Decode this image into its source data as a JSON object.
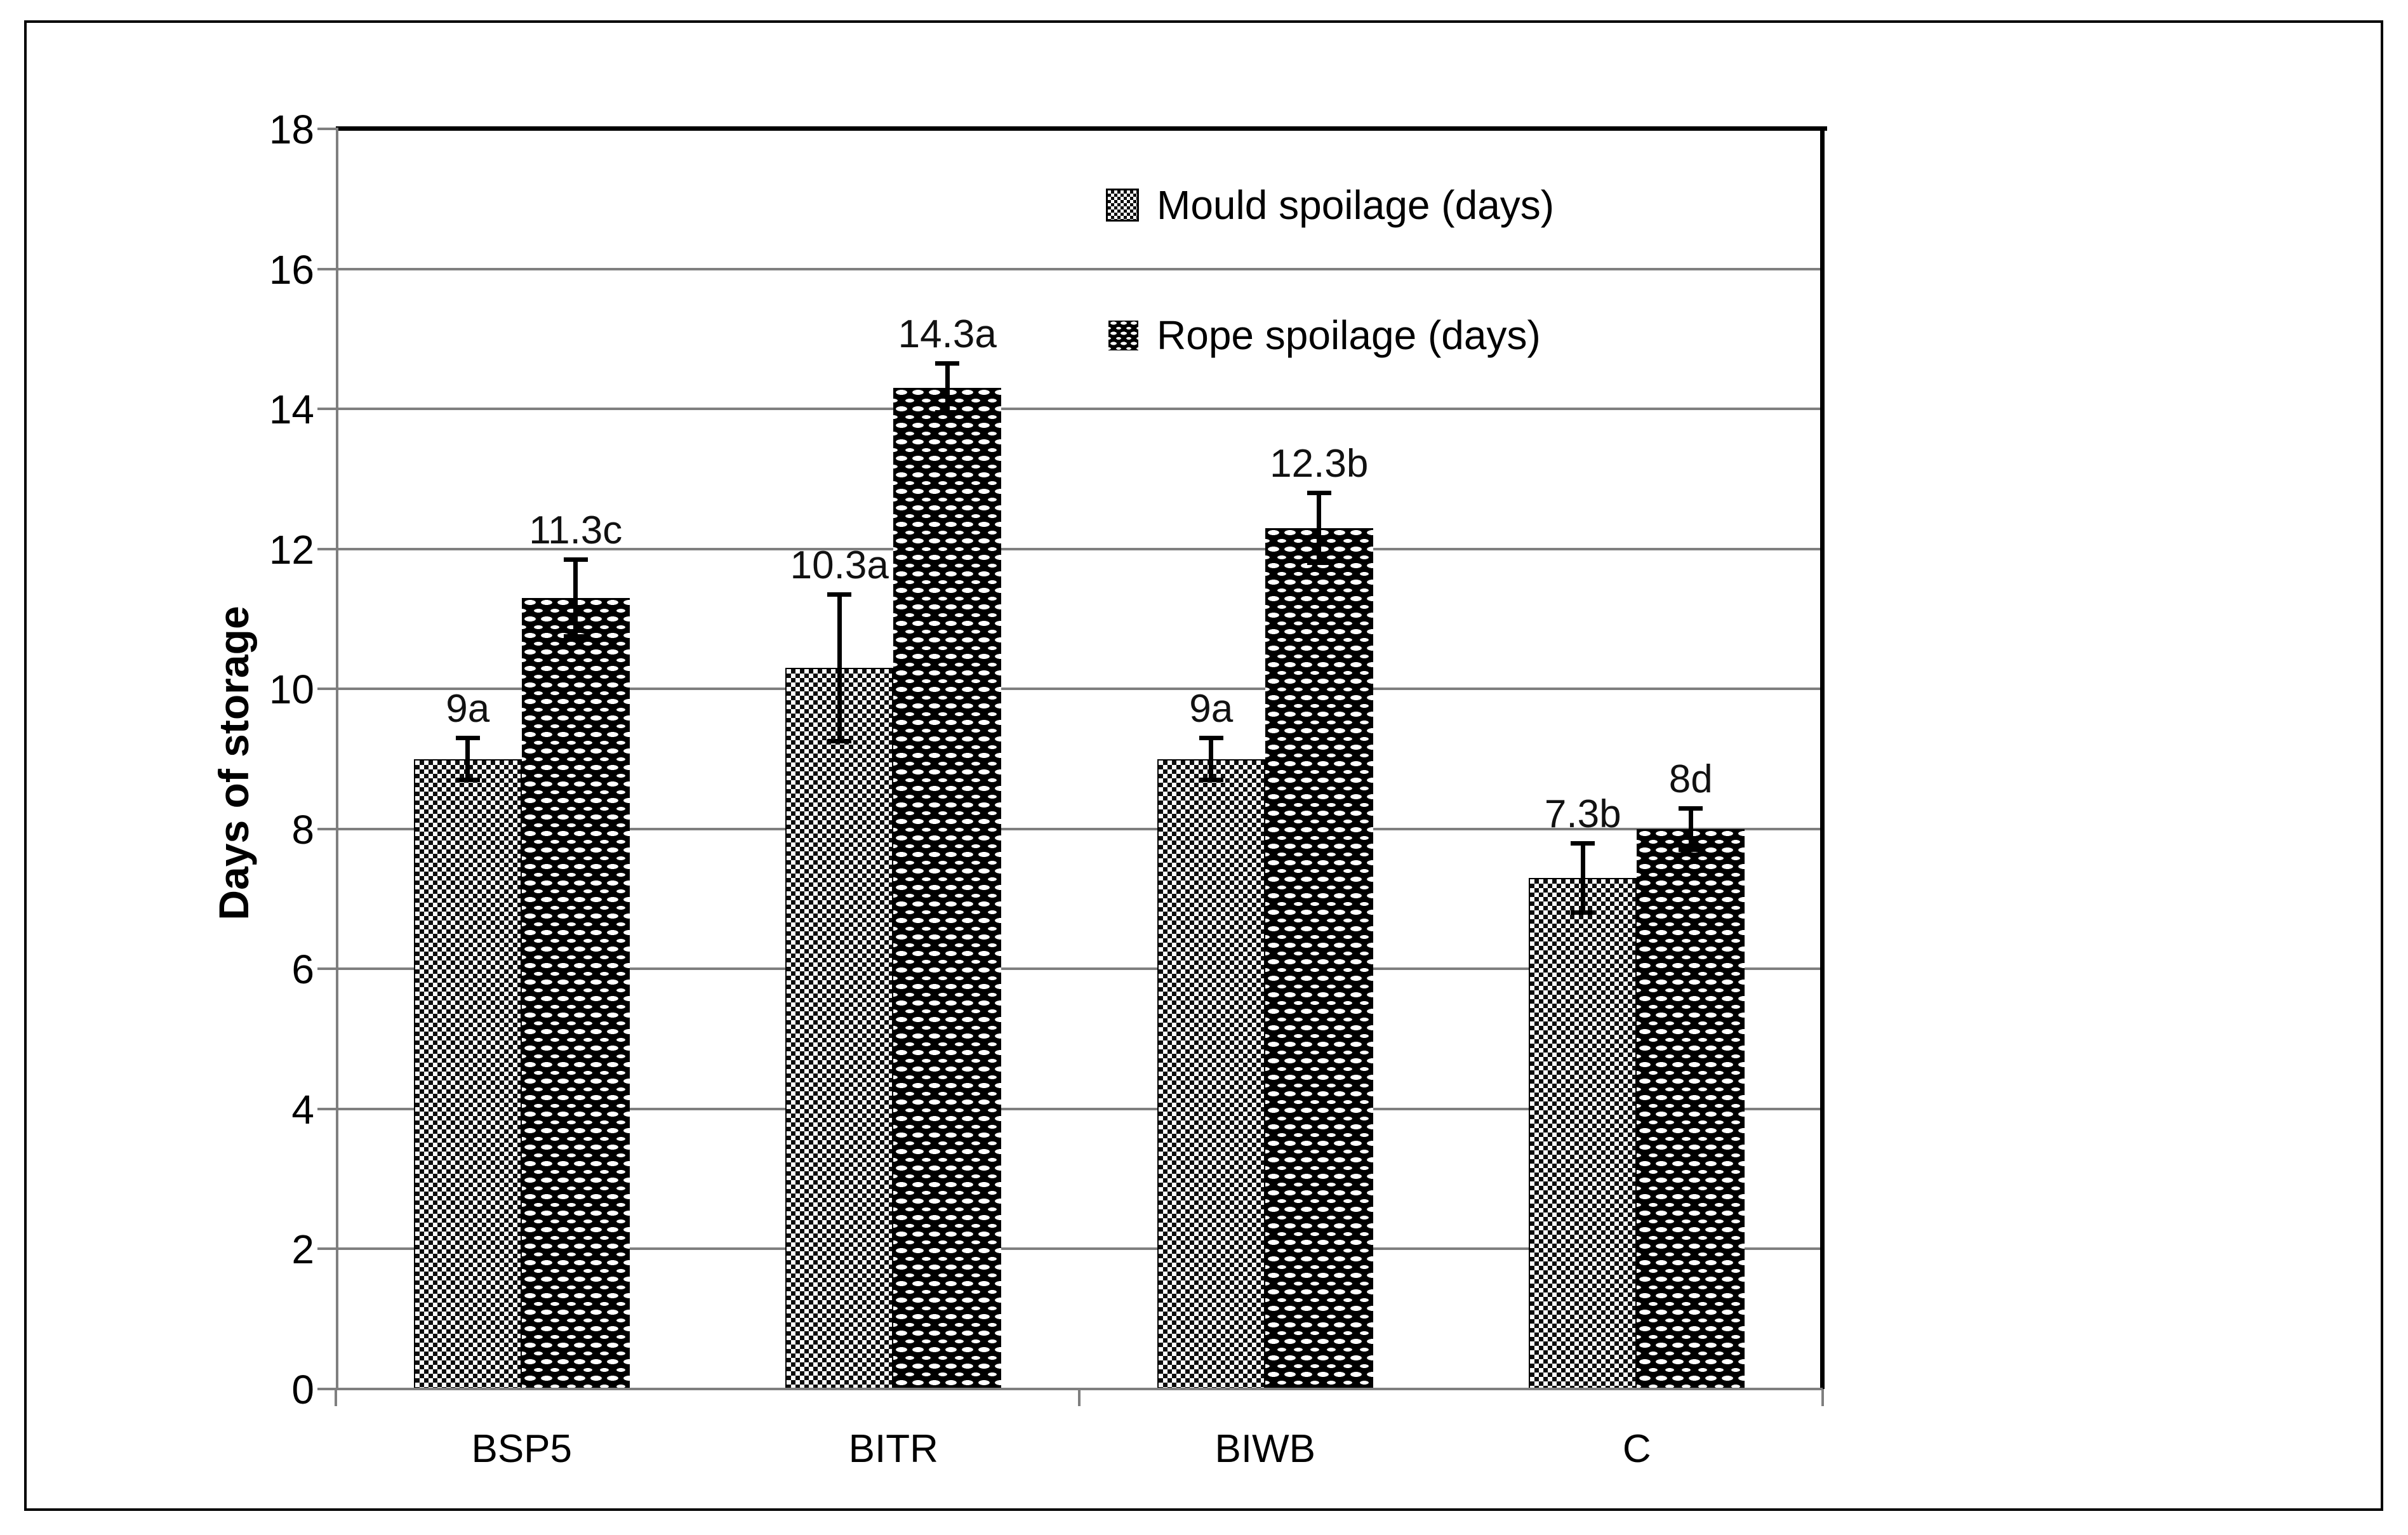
{
  "figure": {
    "description": "Grouped patterned bar chart with error bars comparing mould and rope spoilage days across bread treatments",
    "background": "#ffffff"
  },
  "colors": {
    "grid": "#7f7f7f",
    "axis": "#7f7f7f",
    "plot_border": "#000000",
    "text": "#000000",
    "bar_dark": "#000000",
    "bar_light_bg": "#ffffff"
  },
  "legend": {
    "position": "upper right inside plot",
    "items": [
      {
        "label": "Mould spoilage (days)",
        "swatch": "mould-dot-grid-pattern"
      },
      {
        "label": "Rope spoilage (days)",
        "swatch": "rope-white-dash-on-black-pattern"
      }
    ]
  },
  "chart_data": {
    "type": "bar",
    "title": "",
    "xlabel": "",
    "ylabel": "Days of storage",
    "ylim": [
      0,
      18
    ],
    "ytick_step": 2,
    "y_tick_labels": [
      "0",
      "2",
      "4",
      "6",
      "8",
      "10",
      "12",
      "14",
      "16",
      "18"
    ],
    "grid": "horizontal gray gridlines every 2 units; black border on top and right of plot area",
    "legend_position": "upper right inside plot area",
    "categories": [
      "BSP5",
      "BITR",
      "BIWB",
      "C"
    ],
    "series": [
      {
        "name": "Mould spoilage (days)",
        "pattern": "fine black-white checker dot grid",
        "values": [
          9,
          10.3,
          9,
          7.3
        ],
        "errors_plus": [
          0.3,
          1.05,
          0.3,
          0.5
        ],
        "errors_minus": [
          0.3,
          1.05,
          0.3,
          0.5
        ],
        "labels": [
          "9a",
          "10.3a",
          "9a",
          "7.3b"
        ]
      },
      {
        "name": "Rope spoilage (days)",
        "pattern": "white dashes on black brick pattern",
        "values": [
          11.3,
          14.3,
          12.3,
          8
        ],
        "errors_plus": [
          0.55,
          0.35,
          0.5,
          0.3
        ],
        "errors_minus": [
          0.55,
          0.35,
          0.5,
          0.3
        ],
        "labels": [
          "11.3c",
          "14.3a",
          "12.3b",
          "8d"
        ]
      }
    ]
  }
}
